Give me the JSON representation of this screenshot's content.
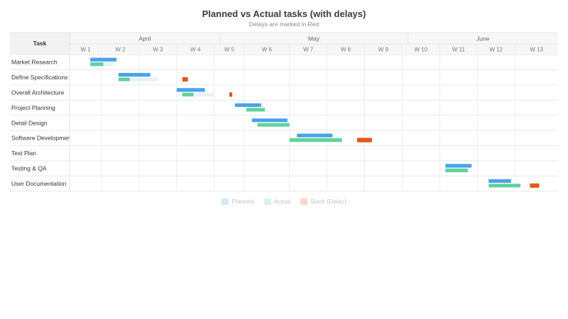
{
  "chart_data": {
    "type": "gantt",
    "title": "Planned vs Actual tasks (with delays)",
    "subtitle": "Delays are marked in Red",
    "task_column_header": "Task",
    "months": [
      {
        "label": "April",
        "start_week": 1,
        "end_week": 5
      },
      {
        "label": "May",
        "start_week": 5,
        "end_week": 10
      },
      {
        "label": "June",
        "start_week": 10,
        "end_week": 14
      }
    ],
    "weeks": [
      "W 1",
      "W 2",
      "W 3",
      "W 4",
      "W 5",
      "W 6",
      "W 7",
      "W 8",
      "W 9",
      "W 10",
      "W 11",
      "W 12",
      "W 13"
    ],
    "week_start_values": [
      1,
      1.85,
      2.85,
      3.85,
      4.85,
      5.65,
      6.85,
      7.85,
      8.85,
      9.85,
      10.85,
      11.85,
      12.85
    ],
    "x_range": [
      1,
      14
    ],
    "series": [
      {
        "name": "Planned",
        "color": "#4aa3ea"
      },
      {
        "name": "Actual",
        "color": "#5fd39b"
      },
      {
        "name": "Slack (Delay)",
        "color": "#e05a1f"
      }
    ],
    "faded_color": "#e8f1fb",
    "tasks": [
      {
        "name": "Market Research",
        "planned": [
          1.55,
          2.25
        ],
        "actual": [
          1.55,
          1.9
        ],
        "slack": null,
        "faded": [
          1.9,
          2.15
        ]
      },
      {
        "name": "Define Specifications",
        "planned": [
          2.3,
          3.15
        ],
        "actual": [
          2.3,
          2.6
        ],
        "slack": [
          4.0,
          4.15
        ],
        "faded": [
          2.6,
          3.35
        ]
      },
      {
        "name": "Overall Architecture",
        "planned": [
          3.85,
          4.6
        ],
        "actual": [
          4.0,
          4.3
        ],
        "slack": [
          5.25,
          5.33
        ],
        "faded": [
          4.3,
          4.85
        ]
      },
      {
        "name": "Project Planning",
        "planned": [
          5.4,
          6.1
        ],
        "actual": [
          5.7,
          6.2
        ],
        "slack": null,
        "faded": null
      },
      {
        "name": "Detail Design",
        "planned": [
          5.85,
          6.8
        ],
        "actual": [
          6.0,
          6.85
        ],
        "slack": null,
        "faded": null
      },
      {
        "name": "Software Development",
        "planned": [
          7.05,
          8.0
        ],
        "actual": [
          6.85,
          8.25
        ],
        "slack": [
          8.65,
          9.05
        ],
        "faded": null
      },
      {
        "name": "Test Plan",
        "planned": null,
        "actual": null,
        "slack": null,
        "faded": null
      },
      {
        "name": "Testing & QA",
        "planned": [
          11.0,
          11.7
        ],
        "actual": [
          11.0,
          11.6
        ],
        "slack": null,
        "faded": null
      },
      {
        "name": "User Documentation",
        "planned": [
          12.15,
          12.75
        ],
        "actual": [
          12.15,
          13.0
        ],
        "slack": [
          13.25,
          13.5
        ],
        "faded": null
      }
    ],
    "grid": true,
    "legend": "bottom-center",
    "legend_faded": true
  }
}
